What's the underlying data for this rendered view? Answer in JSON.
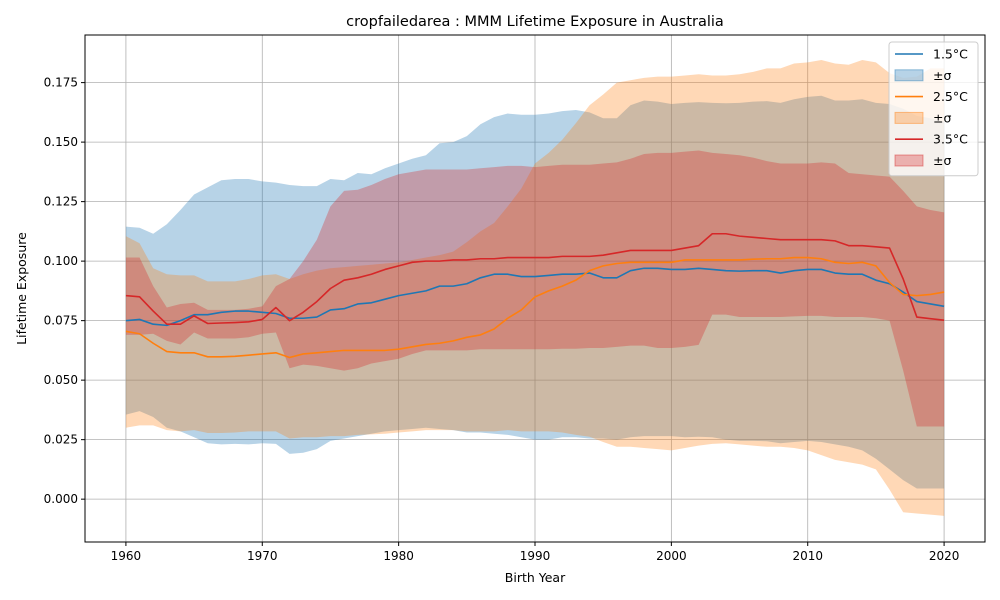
{
  "chart_data": {
    "type": "line",
    "title": "cropfailedarea : MMM Lifetime Exposure in Australia",
    "xlabel": "Birth Year",
    "ylabel": "Lifetime Exposure",
    "xlim": [
      1957,
      2023
    ],
    "ylim": [
      -0.018,
      0.195
    ],
    "xticks": [
      1960,
      1970,
      1980,
      1990,
      2000,
      2010,
      2020
    ],
    "yticks": [
      0.0,
      0.025,
      0.05,
      0.075,
      0.1,
      0.125,
      0.15,
      0.175
    ],
    "ytick_labels": [
      "0.000",
      "0.025",
      "0.050",
      "0.075",
      "0.100",
      "0.125",
      "0.150",
      "0.175"
    ],
    "grid": true,
    "legend_position": "top-right",
    "x": [
      1960,
      1961,
      1962,
      1963,
      1964,
      1965,
      1966,
      1967,
      1968,
      1969,
      1970,
      1971,
      1972,
      1973,
      1974,
      1975,
      1976,
      1977,
      1978,
      1979,
      1980,
      1981,
      1982,
      1983,
      1984,
      1985,
      1986,
      1987,
      1988,
      1989,
      1990,
      1991,
      1992,
      1993,
      1994,
      1995,
      1996,
      1997,
      1998,
      1999,
      2000,
      2001,
      2002,
      2003,
      2004,
      2005,
      2006,
      2007,
      2008,
      2009,
      2010,
      2011,
      2012,
      2013,
      2014,
      2015,
      2016,
      2017,
      2018,
      2019,
      2020
    ],
    "series": [
      {
        "name": "1.5°C",
        "band_label": "±σ",
        "color": "#1f77b4",
        "band_color": "#1f77b4",
        "band_opacity": 0.32,
        "values": [
          0.075,
          0.0755,
          0.0735,
          0.073,
          0.075,
          0.0775,
          0.0775,
          0.0785,
          0.079,
          0.079,
          0.0785,
          0.078,
          0.076,
          0.076,
          0.0765,
          0.0795,
          0.08,
          0.082,
          0.0825,
          0.084,
          0.0855,
          0.0865,
          0.0875,
          0.0895,
          0.0895,
          0.0905,
          0.093,
          0.0945,
          0.0945,
          0.0935,
          0.0935,
          0.094,
          0.0945,
          0.0945,
          0.095,
          0.093,
          0.093,
          0.096,
          0.097,
          0.097,
          0.0965,
          0.0965,
          0.097,
          0.0965,
          0.096,
          0.0958,
          0.096,
          0.096,
          0.095,
          0.096,
          0.0965,
          0.0965,
          0.095,
          0.0945,
          0.0945,
          0.092,
          0.0905,
          0.087,
          0.083,
          0.082,
          0.081
        ],
        "upper": [
          0.1145,
          0.114,
          0.1115,
          0.1155,
          0.1215,
          0.128,
          0.131,
          0.134,
          0.1345,
          0.1345,
          0.1335,
          0.133,
          0.132,
          0.1315,
          0.1315,
          0.1345,
          0.134,
          0.137,
          0.1365,
          0.139,
          0.141,
          0.143,
          0.1445,
          0.1495,
          0.15,
          0.1525,
          0.1575,
          0.1605,
          0.162,
          0.1615,
          0.1615,
          0.162,
          0.163,
          0.1635,
          0.1625,
          0.16,
          0.16,
          0.1655,
          0.1675,
          0.167,
          0.166,
          0.1665,
          0.1668,
          0.1665,
          0.1663,
          0.1665,
          0.167,
          0.1672,
          0.1665,
          0.168,
          0.169,
          0.1695,
          0.1675,
          0.1675,
          0.168,
          0.1665,
          0.166,
          0.164,
          0.161,
          0.16,
          0.1585
        ],
        "lower": [
          0.0355,
          0.037,
          0.0345,
          0.03,
          0.0285,
          0.026,
          0.0235,
          0.023,
          0.0232,
          0.023,
          0.0235,
          0.0232,
          0.019,
          0.0195,
          0.021,
          0.0245,
          0.0255,
          0.0265,
          0.0275,
          0.0285,
          0.029,
          0.0295,
          0.03,
          0.0295,
          0.029,
          0.028,
          0.028,
          0.0275,
          0.027,
          0.026,
          0.025,
          0.025,
          0.026,
          0.026,
          0.0255,
          0.0255,
          0.025,
          0.026,
          0.0265,
          0.0265,
          0.0265,
          0.026,
          0.0262,
          0.026,
          0.025,
          0.0245,
          0.0245,
          0.0243,
          0.0235,
          0.024,
          0.0245,
          0.024,
          0.023,
          0.022,
          0.0205,
          0.017,
          0.0125,
          0.008,
          0.0045,
          0.0045,
          0.0045
        ]
      },
      {
        "name": "2.5°C",
        "band_label": "±σ",
        "color": "#ff7f0e",
        "band_color": "#ff7f0e",
        "band_opacity": 0.3,
        "values": [
          0.0705,
          0.0695,
          0.0655,
          0.062,
          0.0615,
          0.0615,
          0.0598,
          0.0598,
          0.06,
          0.0605,
          0.061,
          0.0615,
          0.0595,
          0.061,
          0.0615,
          0.062,
          0.0625,
          0.0625,
          0.0625,
          0.0625,
          0.063,
          0.064,
          0.065,
          0.0655,
          0.0665,
          0.068,
          0.069,
          0.0715,
          0.076,
          0.0795,
          0.085,
          0.0875,
          0.0895,
          0.092,
          0.096,
          0.098,
          0.099,
          0.0995,
          0.0995,
          0.0995,
          0.0995,
          0.1005,
          0.1005,
          0.1005,
          0.1005,
          0.1005,
          0.1008,
          0.101,
          0.101,
          0.1015,
          0.1015,
          0.101,
          0.0995,
          0.099,
          0.0995,
          0.098,
          0.091,
          0.086,
          0.0855,
          0.086,
          0.087
        ],
        "upper": [
          0.1105,
          0.1075,
          0.097,
          0.0945,
          0.094,
          0.094,
          0.0915,
          0.0915,
          0.0915,
          0.0925,
          0.094,
          0.0945,
          0.0925,
          0.0945,
          0.096,
          0.097,
          0.0975,
          0.098,
          0.0985,
          0.099,
          0.0995,
          0.1005,
          0.1015,
          0.1025,
          0.104,
          0.108,
          0.1125,
          0.116,
          0.123,
          0.1305,
          0.141,
          0.1455,
          0.151,
          0.158,
          0.1655,
          0.17,
          0.175,
          0.176,
          0.177,
          0.1775,
          0.1775,
          0.178,
          0.1785,
          0.178,
          0.178,
          0.1785,
          0.1795,
          0.181,
          0.181,
          0.183,
          0.1835,
          0.1845,
          0.183,
          0.1825,
          0.1845,
          0.1835,
          0.179,
          0.177,
          0.1775,
          0.181,
          0.181
        ],
        "lower": [
          0.03,
          0.031,
          0.031,
          0.029,
          0.0285,
          0.029,
          0.0278,
          0.0278,
          0.028,
          0.0285,
          0.0285,
          0.0285,
          0.0255,
          0.026,
          0.026,
          0.0265,
          0.0265,
          0.027,
          0.0272,
          0.0275,
          0.028,
          0.0285,
          0.029,
          0.029,
          0.029,
          0.0285,
          0.0285,
          0.0285,
          0.029,
          0.0285,
          0.0285,
          0.0285,
          0.028,
          0.027,
          0.0262,
          0.024,
          0.022,
          0.022,
          0.0215,
          0.021,
          0.0205,
          0.0215,
          0.0225,
          0.0232,
          0.0235,
          0.023,
          0.0225,
          0.022,
          0.022,
          0.0215,
          0.0205,
          0.0185,
          0.0165,
          0.0155,
          0.0145,
          0.0125,
          0.004,
          -0.0055,
          -0.006,
          -0.0065,
          -0.007
        ]
      },
      {
        "name": "3.5°C",
        "band_label": "±σ",
        "color": "#d62728",
        "band_color": "#d62728",
        "band_opacity": 0.32,
        "values": [
          0.0855,
          0.085,
          0.079,
          0.0735,
          0.0735,
          0.077,
          0.0738,
          0.074,
          0.0742,
          0.0745,
          0.0755,
          0.0805,
          0.075,
          0.0785,
          0.083,
          0.0885,
          0.092,
          0.093,
          0.0945,
          0.0965,
          0.098,
          0.0995,
          0.1,
          0.1,
          0.1005,
          0.1005,
          0.101,
          0.101,
          0.1015,
          0.1015,
          0.1015,
          0.1015,
          0.102,
          0.102,
          0.102,
          0.1025,
          0.1035,
          0.1045,
          0.1045,
          0.1045,
          0.1045,
          0.1055,
          0.1065,
          0.1115,
          0.1115,
          0.1105,
          0.11,
          0.1095,
          0.109,
          0.109,
          0.109,
          0.109,
          0.1085,
          0.1065,
          0.1065,
          0.106,
          0.1055,
          0.0925,
          0.0765,
          0.0758,
          0.0752
        ],
        "upper": [
          0.1015,
          0.1015,
          0.0895,
          0.0805,
          0.082,
          0.0825,
          0.0795,
          0.0795,
          0.0795,
          0.08,
          0.081,
          0.0895,
          0.0925,
          0.1,
          0.109,
          0.123,
          0.1295,
          0.13,
          0.132,
          0.1345,
          0.1365,
          0.1375,
          0.1385,
          0.1385,
          0.1385,
          0.1385,
          0.139,
          0.1395,
          0.14,
          0.14,
          0.1395,
          0.14,
          0.1405,
          0.1405,
          0.1405,
          0.141,
          0.1415,
          0.143,
          0.145,
          0.1455,
          0.1455,
          0.146,
          0.1465,
          0.1455,
          0.145,
          0.1445,
          0.1435,
          0.142,
          0.141,
          0.141,
          0.141,
          0.1415,
          0.141,
          0.137,
          0.1365,
          0.136,
          0.1355,
          0.1295,
          0.123,
          0.1215,
          0.1205
        ],
        "lower": [
          0.069,
          0.069,
          0.0695,
          0.0665,
          0.065,
          0.07,
          0.0675,
          0.0675,
          0.0675,
          0.068,
          0.0695,
          0.07,
          0.055,
          0.0565,
          0.056,
          0.055,
          0.054,
          0.055,
          0.057,
          0.058,
          0.059,
          0.061,
          0.0625,
          0.0625,
          0.0625,
          0.0625,
          0.063,
          0.063,
          0.063,
          0.063,
          0.063,
          0.063,
          0.0632,
          0.0632,
          0.0635,
          0.0635,
          0.064,
          0.0645,
          0.0645,
          0.0635,
          0.0635,
          0.064,
          0.0648,
          0.0775,
          0.0775,
          0.0765,
          0.0765,
          0.0765,
          0.0765,
          0.0768,
          0.077,
          0.077,
          0.0765,
          0.0765,
          0.0765,
          0.076,
          0.075,
          0.054,
          0.0305,
          0.0305,
          0.0305
        ]
      }
    ]
  }
}
